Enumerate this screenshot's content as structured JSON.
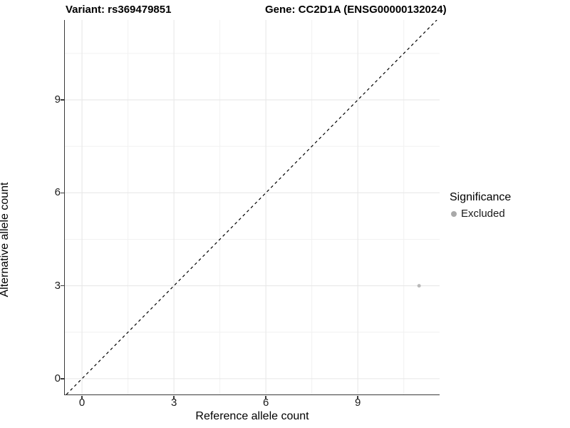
{
  "titles": {
    "left": "Variant: rs369479851",
    "right": "Gene: CC2D1A (ENSG00000132024)"
  },
  "legend": {
    "title": "Significance",
    "items": [
      {
        "label": "Excluded",
        "color": "#a9a9a9"
      }
    ]
  },
  "colors": {
    "point": "#b9b9b9",
    "legend_dot": "#a9a9a9",
    "axis_line": "#3a3a3a",
    "grid_major": "#e6e6e6",
    "grid_minor": "#f1f1f1",
    "reference_line": "#000000"
  },
  "chart_data": {
    "type": "scatter",
    "xlabel": "Reference allele count",
    "ylabel": "Alternative allele count",
    "x_ticks": [
      0,
      3,
      6,
      9
    ],
    "y_ticks": [
      0,
      3,
      6,
      9
    ],
    "x_minor_ticks": [
      1.5,
      4.5,
      7.5,
      10.5
    ],
    "y_minor_ticks": [
      1.5,
      4.5,
      7.5,
      10.5
    ],
    "xlim": [
      -0.56,
      11.67
    ],
    "ylim": [
      -0.51,
      11.58
    ],
    "grid": true,
    "legend_position": "right",
    "series": [
      {
        "name": "Excluded",
        "color": "#b9b9b9",
        "points": [
          {
            "x": 11,
            "y": 3
          }
        ]
      }
    ],
    "reference_line": {
      "kind": "identity",
      "style": "dashed",
      "color": "#000000"
    }
  }
}
